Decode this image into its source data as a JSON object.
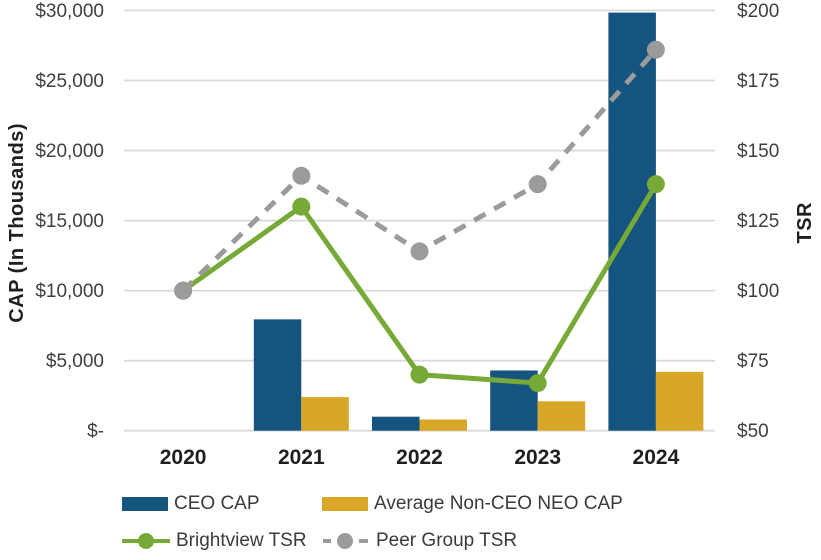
{
  "chart_data": {
    "type": "combo-bar-line",
    "categories": [
      "2020",
      "2021",
      "2022",
      "2023",
      "2024"
    ],
    "series": [
      {
        "name": "CEO CAP",
        "type": "bar",
        "axis": "left",
        "color": "#15547F",
        "values": [
          0,
          7950,
          1000,
          4300,
          29850
        ]
      },
      {
        "name": "Average Non-CEO NEO CAP",
        "type": "bar",
        "axis": "left",
        "color": "#D9A728",
        "values": [
          0,
          2400,
          800,
          2100,
          4200
        ]
      },
      {
        "name": "Brightview TSR",
        "type": "line",
        "axis": "right",
        "color": "#77A936",
        "style": "solid",
        "values": [
          100,
          130,
          70,
          67,
          138
        ]
      },
      {
        "name": "Peer Group TSR",
        "type": "line",
        "axis": "right",
        "color": "#9B9B9B",
        "style": "dashed",
        "values": [
          100,
          141,
          114,
          138,
          186
        ]
      }
    ],
    "left_axis": {
      "title": "CAP (In Thousands)",
      "min": 0,
      "max": 30000,
      "step": 5000,
      "tick_labels": [
        "$-",
        "$5,000",
        "$10,000",
        "$15,000",
        "$20,000",
        "$25,000",
        "$30,000"
      ]
    },
    "right_axis": {
      "title": "TSR",
      "min": 50,
      "max": 200,
      "step": 25,
      "tick_labels": [
        "$50",
        "$75",
        "$100",
        "$125",
        "$150",
        "$175",
        "$200"
      ]
    },
    "grid": true,
    "legend_position": "bottom"
  },
  "legend": {
    "items": [
      {
        "label": "CEO CAP",
        "swatch": "bar",
        "color": "#15547F"
      },
      {
        "label": "Average Non-CEO NEO CAP",
        "swatch": "bar",
        "color": "#D9A728"
      },
      {
        "label": "Brightview TSR",
        "swatch": "line-solid",
        "color": "#77A936"
      },
      {
        "label": "Peer Group TSR",
        "swatch": "line-dashed",
        "color": "#9B9B9B"
      }
    ]
  },
  "colors": {
    "ceo_bar": "#15547F",
    "neo_bar": "#D9A728",
    "brightview_line": "#77A936",
    "peer_line": "#9B9B9B",
    "gridline": "#DADADA",
    "tick_text": "#3F3F3F",
    "label_text": "#1F1F1F"
  }
}
